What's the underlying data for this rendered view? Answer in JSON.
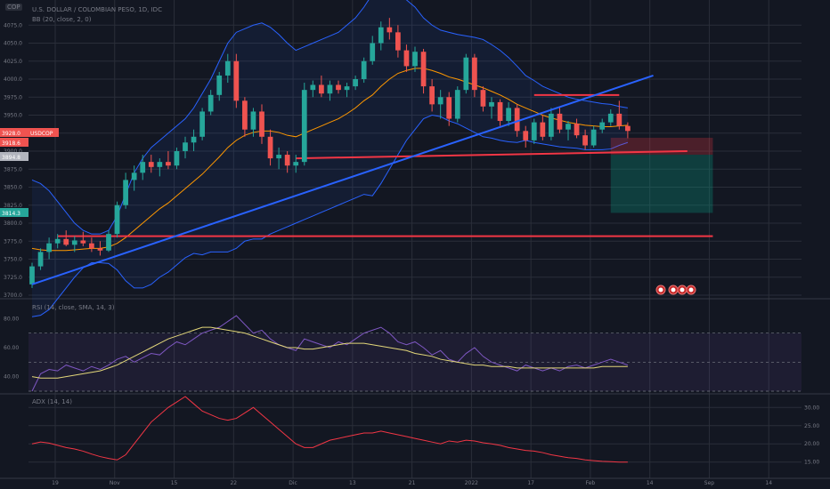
{
  "header": {
    "symbol_badge": "COP",
    "title": "U.S. DOLLAR / COLOMBIAN PESO, 1D, IDC",
    "bb_label": "BB (20, close, 2, 0)",
    "rsi_label": "RSI (14, close, SMA, 14, 3)",
    "adx_label": "ADX (14, 14)"
  },
  "price_tags": [
    {
      "label": "3928.0",
      "value": 3928.0,
      "color": "#ef5350"
    },
    {
      "label": "USDCOP",
      "value": 3928.0,
      "color": "#ef5350"
    },
    {
      "label": "3918.6",
      "value": 3918.6,
      "color": "#ef5350"
    },
    {
      "label": "3894.8",
      "value": 3894.8,
      "color": "#b2b5be"
    },
    {
      "label": "3814.3",
      "value": 3814.3,
      "color": "#26a69a"
    }
  ],
  "colors": {
    "background": "#131722",
    "grid": "#2a2e39",
    "up": "#26a69a",
    "down": "#ef5350",
    "bb_band": "#2962ff",
    "bb_mid": "#ff9800",
    "trendline": "#2962ff",
    "levels": "#f23645",
    "rsi": "#7e57c2",
    "rsi_ma": "#e3d77a",
    "adx": "#f23645"
  },
  "chart_data": {
    "type": "candlestick",
    "price_axis": {
      "range": [
        3700,
        4100
      ],
      "ticks": [
        "3700.0",
        "3725.0",
        "3750.0",
        "3775.0",
        "3800.0",
        "3825.0",
        "3850.0",
        "3875.0",
        "3900.0",
        "3925.0",
        "3950.0",
        "3975.0",
        "4000.0",
        "4025.0",
        "4050.0",
        "4075.0"
      ]
    },
    "time_axis": {
      "ticks": [
        "19",
        "Nov",
        "15",
        "22",
        "Dic",
        "13",
        "21",
        "2022",
        "17",
        "Feb",
        "14",
        "Sep",
        "14"
      ]
    },
    "candles": [
      [
        3715,
        3745,
        3710,
        3740
      ],
      [
        3740,
        3765,
        3735,
        3760
      ],
      [
        3760,
        3780,
        3750,
        3772
      ],
      [
        3772,
        3785,
        3765,
        3778
      ],
      [
        3778,
        3790,
        3768,
        3770
      ],
      [
        3770,
        3782,
        3760,
        3776
      ],
      [
        3776,
        3788,
        3768,
        3772
      ],
      [
        3772,
        3780,
        3760,
        3765
      ],
      [
        3765,
        3775,
        3755,
        3762
      ],
      [
        3762,
        3790,
        3760,
        3785
      ],
      [
        3785,
        3830,
        3780,
        3825
      ],
      [
        3825,
        3870,
        3820,
        3860
      ],
      [
        3860,
        3880,
        3845,
        3870
      ],
      [
        3870,
        3895,
        3860,
        3885
      ],
      [
        3885,
        3895,
        3870,
        3878
      ],
      [
        3878,
        3890,
        3865,
        3885
      ],
      [
        3885,
        3900,
        3875,
        3880
      ],
      [
        3880,
        3905,
        3875,
        3900
      ],
      [
        3900,
        3920,
        3890,
        3912
      ],
      [
        3912,
        3930,
        3900,
        3920
      ],
      [
        3920,
        3960,
        3915,
        3955
      ],
      [
        3955,
        3985,
        3950,
        3978
      ],
      [
        3978,
        4010,
        3970,
        4005
      ],
      [
        4005,
        4035,
        3995,
        4025
      ],
      [
        4025,
        4035,
        3960,
        3970
      ],
      [
        3970,
        3975,
        3920,
        3930
      ],
      [
        3930,
        3960,
        3920,
        3955
      ],
      [
        3955,
        3965,
        3910,
        3920
      ],
      [
        3920,
        3930,
        3880,
        3890
      ],
      [
        3890,
        3905,
        3875,
        3895
      ],
      [
        3895,
        3900,
        3870,
        3880
      ],
      [
        3880,
        3895,
        3870,
        3885
      ],
      [
        3885,
        3995,
        3880,
        3985
      ],
      [
        3985,
        3998,
        3975,
        3992
      ],
      [
        3992,
        4005,
        3975,
        3980
      ],
      [
        3980,
        3998,
        3970,
        3992
      ],
      [
        3992,
        3998,
        3980,
        3985
      ],
      [
        3985,
        3995,
        3975,
        3990
      ],
      [
        3990,
        4005,
        3985,
        4000
      ],
      [
        4000,
        4030,
        3995,
        4025
      ],
      [
        4025,
        4060,
        4020,
        4050
      ],
      [
        4050,
        4080,
        4040,
        4072
      ],
      [
        4072,
        4085,
        4055,
        4065
      ],
      [
        4065,
        4075,
        4030,
        4040
      ],
      [
        4040,
        4048,
        4010,
        4018
      ],
      [
        4018,
        4045,
        4010,
        4038
      ],
      [
        4038,
        4042,
        3980,
        3990
      ],
      [
        3990,
        4000,
        3955,
        3965
      ],
      [
        3965,
        3985,
        3945,
        3975
      ],
      [
        3975,
        3982,
        3935,
        3945
      ],
      [
        3945,
        3990,
        3940,
        3985
      ],
      [
        3985,
        4035,
        3980,
        4030
      ],
      [
        4030,
        4035,
        3975,
        3985
      ],
      [
        3985,
        3990,
        3955,
        3962
      ],
      [
        3962,
        3975,
        3945,
        3968
      ],
      [
        3968,
        3972,
        3935,
        3942
      ],
      [
        3942,
        3968,
        3935,
        3960
      ],
      [
        3960,
        3965,
        3920,
        3928
      ],
      [
        3928,
        3935,
        3905,
        3915
      ],
      [
        3915,
        3945,
        3910,
        3940
      ],
      [
        3940,
        3950,
        3915,
        3920
      ],
      [
        3920,
        3960,
        3915,
        3952
      ],
      [
        3952,
        3962,
        3925,
        3930
      ],
      [
        3930,
        3942,
        3915,
        3938
      ],
      [
        3938,
        3945,
        3918,
        3922
      ],
      [
        3922,
        3930,
        3902,
        3908
      ],
      [
        3908,
        3935,
        3905,
        3930
      ],
      [
        3930,
        3945,
        3925,
        3940
      ],
      [
        3940,
        3958,
        3935,
        3952
      ],
      [
        3952,
        3970,
        3930,
        3935
      ],
      [
        3935,
        3940,
        3918,
        3928
      ]
    ],
    "bollinger": {
      "upper": [
        3860,
        3855,
        3845,
        3830,
        3815,
        3800,
        3790,
        3785,
        3785,
        3790,
        3810,
        3840,
        3870,
        3890,
        3905,
        3915,
        3925,
        3935,
        3945,
        3960,
        3980,
        4000,
        4025,
        4050,
        4065,
        4070,
        4075,
        4078,
        4072,
        4062,
        4050,
        4040,
        4045,
        4050,
        4055,
        4060,
        4065,
        4075,
        4085,
        4100,
        4118,
        4125,
        4125,
        4120,
        4110,
        4100,
        4085,
        4075,
        4068,
        4065,
        4062,
        4060,
        4058,
        4055,
        4048,
        4040,
        4030,
        4018,
        4005,
        3998,
        3990,
        3985,
        3980,
        3975,
        3972,
        3970,
        3968,
        3966,
        3965,
        3962,
        3960
      ],
      "middle": [
        3765,
        3763,
        3762,
        3762,
        3762,
        3763,
        3764,
        3765,
        3765,
        3767,
        3772,
        3780,
        3790,
        3800,
        3810,
        3820,
        3828,
        3838,
        3848,
        3858,
        3868,
        3880,
        3892,
        3905,
        3915,
        3922,
        3926,
        3928,
        3928,
        3926,
        3922,
        3920,
        3925,
        3930,
        3935,
        3940,
        3945,
        3952,
        3960,
        3970,
        3978,
        3990,
        4000,
        4008,
        4012,
        4015,
        4015,
        4012,
        4008,
        4003,
        4000,
        3996,
        3992,
        3988,
        3983,
        3978,
        3972,
        3965,
        3960,
        3955,
        3950,
        3946,
        3943,
        3940,
        3938,
        3936,
        3935,
        3934,
        3934,
        3935,
        3936
      ],
      "lower": [
        3670,
        3672,
        3680,
        3695,
        3710,
        3725,
        3738,
        3745,
        3745,
        3744,
        3735,
        3720,
        3710,
        3710,
        3715,
        3725,
        3732,
        3742,
        3752,
        3758,
        3756,
        3760,
        3760,
        3760,
        3765,
        3775,
        3778,
        3778,
        3785,
        3790,
        3795,
        3800,
        3805,
        3810,
        3815,
        3820,
        3825,
        3830,
        3835,
        3840,
        3838,
        3855,
        3875,
        3895,
        3915,
        3930,
        3945,
        3950,
        3948,
        3942,
        3938,
        3932,
        3926,
        3920,
        3918,
        3915,
        3913,
        3912,
        3915,
        3912,
        3910,
        3908,
        3906,
        3905,
        3904,
        3902,
        3902,
        3902,
        3903,
        3908,
        3912
      ]
    },
    "trendline_up": {
      "from": [
        0,
        3715
      ],
      "to": [
        73,
        4005
      ],
      "color": "#2962ff"
    },
    "horizontal_levels": [
      {
        "from_index": 3,
        "to_index": 80,
        "value": 3782
      },
      {
        "from_index": 31,
        "to_index": 77,
        "value": 3890,
        "slope_to": 3900
      },
      {
        "from_index": 59,
        "to_index": 69,
        "value": 3978
      }
    ],
    "position_box": {
      "from_index": 68,
      "to_index": 80,
      "risk": [
        3895,
        3918.6
      ],
      "reward": [
        3814.3,
        3895
      ]
    },
    "event_markers": 4,
    "rsi": {
      "range": [
        30,
        90
      ],
      "ticks": [
        "40.00",
        "60.00",
        "80.00"
      ],
      "upper_band": 70,
      "lower_band": 30,
      "mid": 50,
      "values": [
        30,
        42,
        45,
        44,
        48,
        46,
        44,
        47,
        45,
        48,
        52,
        54,
        50,
        53,
        56,
        55,
        60,
        64,
        62,
        66,
        70,
        72,
        74,
        78,
        82,
        76,
        70,
        72,
        66,
        62,
        60,
        58,
        66,
        64,
        62,
        60,
        64,
        62,
        66,
        70,
        72,
        74,
        70,
        64,
        62,
        64,
        60,
        55,
        58,
        52,
        50,
        56,
        60,
        54,
        50,
        48,
        46,
        44,
        48,
        46,
        44,
        46,
        44,
        47,
        48,
        46,
        48,
        50,
        52,
        50,
        48
      ],
      "ma_values": [
        40,
        39,
        39,
        39,
        40,
        41,
        42,
        43,
        44,
        46,
        48,
        51,
        54,
        57,
        60,
        63,
        66,
        68,
        70,
        72,
        74,
        74,
        73,
        72,
        71,
        70,
        68,
        66,
        64,
        62,
        60,
        60,
        59,
        59,
        60,
        61,
        62,
        63,
        63,
        63,
        62,
        61,
        60,
        59,
        58,
        56,
        55,
        54,
        52,
        51,
        50,
        49,
        48,
        48,
        47,
        47,
        47,
        46,
        46,
        46,
        46,
        46,
        46,
        46,
        46,
        46,
        46,
        47,
        47,
        47,
        47
      ]
    },
    "adx": {
      "range": [
        12,
        33
      ],
      "ticks": [
        "15.00",
        "20.00",
        "25.00",
        "30.00"
      ],
      "values": [
        20,
        20.5,
        20.2,
        19.6,
        19,
        18.6,
        18,
        17.2,
        16.5,
        16,
        15.6,
        17,
        20,
        23,
        26,
        28,
        30,
        31.5,
        33,
        31,
        29,
        28,
        27,
        26.5,
        27,
        28.5,
        30,
        28,
        26,
        24,
        22,
        20,
        19,
        19,
        20,
        21,
        21.5,
        22,
        22.5,
        23,
        23,
        23.5,
        23,
        22.5,
        22,
        21.5,
        21,
        20.5,
        20,
        20.8,
        20.5,
        21,
        20.8,
        20.3,
        20,
        19.6,
        19,
        18.6,
        18.2,
        18,
        17.6,
        17,
        16.6,
        16.2,
        16,
        15.6,
        15.4,
        15.2,
        15.1,
        15,
        15
      ]
    }
  }
}
